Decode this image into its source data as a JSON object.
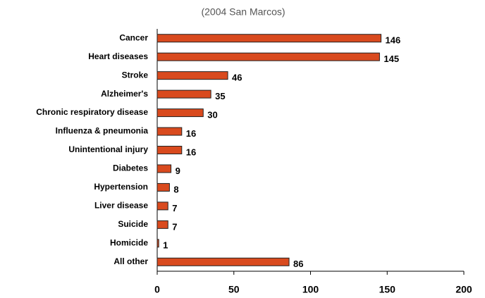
{
  "chart_data": {
    "type": "barh",
    "subtitle": "(2004 San Marcos)",
    "categories": [
      "Cancer",
      "Heart diseases",
      "Stroke",
      "Alzheimer's",
      "Chronic respiratory disease",
      "Influenza & pneumonia",
      "Unintentional injury",
      "Diabetes",
      "Hypertension",
      "Liver disease",
      "Suicide",
      "Homicide",
      "All other"
    ],
    "values": [
      146,
      145,
      46,
      35,
      30,
      16,
      16,
      9,
      8,
      7,
      7,
      1,
      86
    ],
    "color": "#d94a1e",
    "xlim": [
      0,
      200
    ],
    "xticks": [
      0,
      50,
      100,
      150,
      200
    ]
  }
}
